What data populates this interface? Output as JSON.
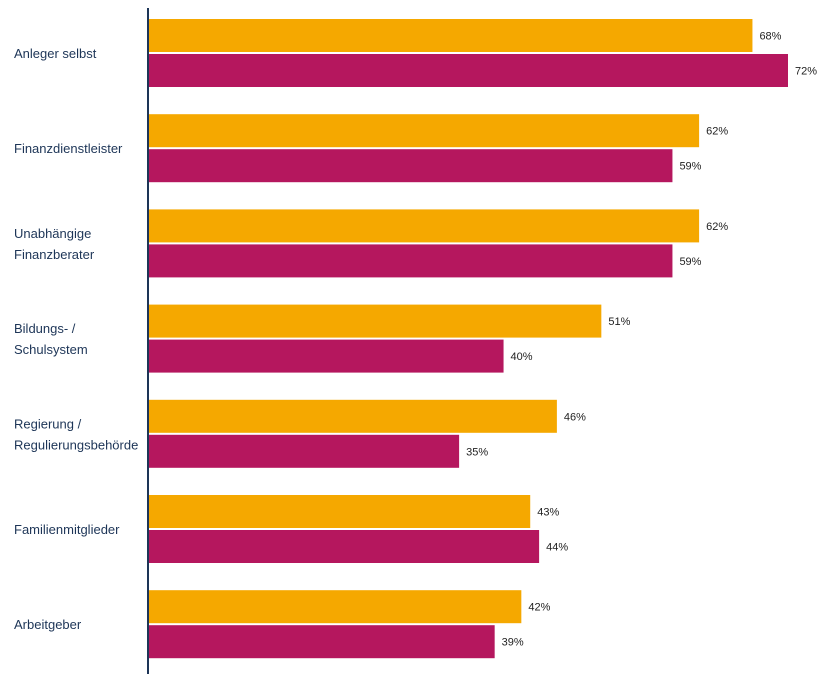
{
  "chart_data": {
    "type": "bar",
    "orientation": "horizontal",
    "categories": [
      [
        "Anleger selbst"
      ],
      [
        "Finanzdienstleister"
      ],
      [
        "Unabhängige",
        "Finanzberater"
      ],
      [
        "Bildungs- /",
        "Schulsystem"
      ],
      [
        "Regierung /",
        "Regulierungsbehörde"
      ],
      [
        "Familienmitglieder"
      ],
      [
        "Arbeitgeber"
      ]
    ],
    "series": [
      {
        "values": [
          68,
          62,
          62,
          51,
          46,
          43,
          42
        ],
        "color": "#f5a800"
      },
      {
        "values": [
          72,
          59,
          59,
          40,
          35,
          44,
          39
        ],
        "color": "#b5175e"
      }
    ],
    "value_suffix": "%",
    "xlim": [
      0,
      72
    ],
    "grid": false,
    "legend": "none",
    "axis_color": "#1d3557"
  }
}
